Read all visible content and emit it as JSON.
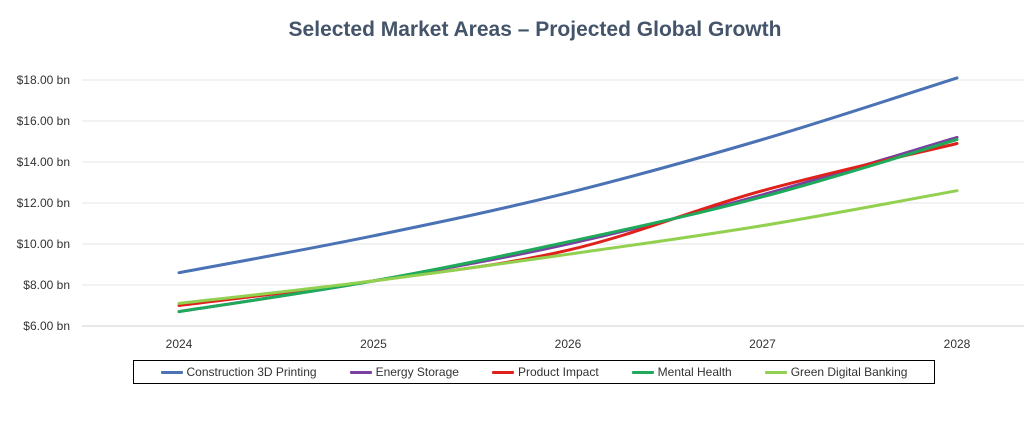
{
  "chart_data": {
    "type": "line",
    "title": "Selected Market Areas – Projected Global Growth",
    "xlabel": "",
    "ylabel": "",
    "x": [
      "2024",
      "2025",
      "2026",
      "2027",
      "2028"
    ],
    "ylim": [
      6,
      19
    ],
    "yticks": [
      6,
      8,
      10,
      12,
      14,
      16,
      18
    ],
    "ytick_labels": [
      "$6.00 bn",
      "$8.00 bn",
      "$10.00 bn",
      "$12.00 bn",
      "$14.00 bn",
      "$16.00 bn",
      "$18.00 bn"
    ],
    "grid": true,
    "legend_position": "bottom",
    "series": [
      {
        "name": "Construction 3D Printing",
        "color": "#4a72b4",
        "values": [
          8.6,
          10.4,
          12.5,
          15.1,
          18.1
        ]
      },
      {
        "name": "Energy Storage",
        "color": "#7a3fa0",
        "values": [
          6.7,
          8.2,
          10.0,
          12.4,
          15.2
        ]
      },
      {
        "name": "Product Impact",
        "color": "#e0201b",
        "values": [
          7.0,
          8.2,
          9.7,
          12.6,
          14.9
        ]
      },
      {
        "name": "Mental Health",
        "color": "#1eaa5a",
        "values": [
          6.7,
          8.2,
          10.1,
          12.3,
          15.1
        ]
      },
      {
        "name": "Green Digital Banking",
        "color": "#92d050",
        "values": [
          7.1,
          8.2,
          9.5,
          10.9,
          12.6
        ]
      }
    ]
  }
}
